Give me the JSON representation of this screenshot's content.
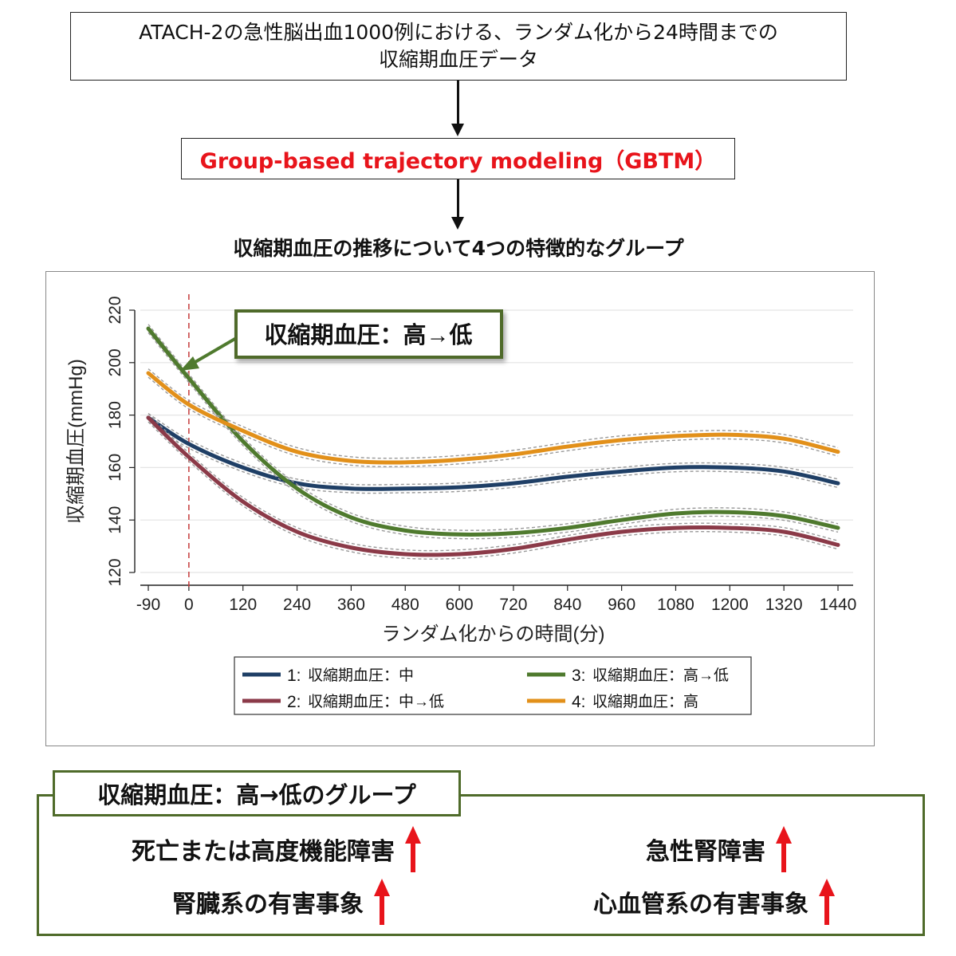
{
  "flow": {
    "top_line1": "ATACH-2の急性脳出血1000例における、ランダム化から24時間までの",
    "top_line2": "収縮期血圧データ",
    "method": "Group-based trajectory modeling（GBTM）",
    "result": "収縮期血圧の推移について4つの特徴的なグループ"
  },
  "chart_data": {
    "type": "line",
    "xlabel": "ランダム化からの時間(分)",
    "ylabel": "収縮期血圧(mmHg)",
    "xlim": [
      -90,
      1440
    ],
    "ylim": [
      120,
      220
    ],
    "x_ticks": [
      -90,
      0,
      120,
      240,
      360,
      480,
      600,
      720,
      840,
      960,
      1080,
      1200,
      1320,
      1440
    ],
    "y_ticks": [
      120,
      140,
      160,
      180,
      200,
      220
    ],
    "grid": true,
    "reference_line_x": 0,
    "annotation": "収縮期血圧：高→低",
    "legend_placement": "bottom",
    "series": [
      {
        "id": "1",
        "name": "収縮期血圧：中",
        "color": "#1f3f66",
        "x": [
          -90,
          0,
          120,
          240,
          360,
          480,
          600,
          720,
          840,
          960,
          1080,
          1200,
          1320,
          1440
        ],
        "y": [
          179,
          169,
          160,
          154,
          152,
          152,
          152.5,
          154,
          156.5,
          158.5,
          160,
          160,
          158.5,
          154
        ]
      },
      {
        "id": "2",
        "name": "収縮期血圧：中→低",
        "color": "#8b3a48",
        "x": [
          -90,
          0,
          120,
          240,
          360,
          480,
          600,
          720,
          840,
          960,
          1080,
          1200,
          1320,
          1440
        ],
        "y": [
          179,
          164,
          147,
          135.5,
          129.5,
          127,
          127,
          129,
          132.5,
          135.5,
          137,
          137,
          135.5,
          130.5
        ]
      },
      {
        "id": "3",
        "name": "収縮期血圧：高→低",
        "color": "#4f7a2e",
        "x": [
          -90,
          0,
          120,
          240,
          360,
          480,
          600,
          720,
          840,
          960,
          1080,
          1200,
          1320,
          1440
        ],
        "y": [
          213,
          194,
          170,
          152,
          141,
          136,
          134.5,
          135,
          137,
          140,
          142.5,
          143,
          141.5,
          137
        ]
      },
      {
        "id": "4",
        "name": "収縮期血圧：高",
        "color": "#e2901a",
        "x": [
          -90,
          0,
          120,
          240,
          360,
          480,
          600,
          720,
          840,
          960,
          1080,
          1200,
          1320,
          1440
        ],
        "y": [
          196,
          184,
          174,
          166,
          162.5,
          162,
          163,
          165,
          168,
          170.5,
          172,
          172.5,
          171,
          166
        ]
      }
    ]
  },
  "summary": {
    "title": "収縮期血圧：高→低のグループ",
    "outcomes": [
      "死亡または高度機能障害",
      "急性腎障害",
      "腎臓系の有害事象",
      "心血管系の有害事象"
    ],
    "arrow_color": "#e8141b"
  }
}
